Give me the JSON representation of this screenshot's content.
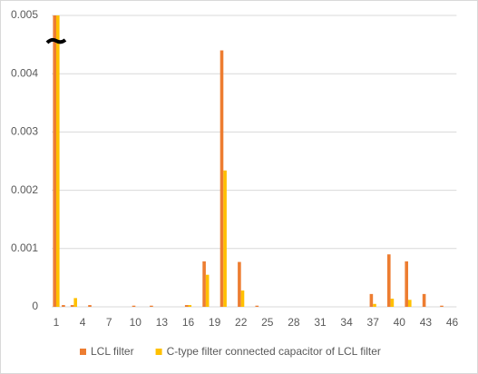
{
  "chart_data": {
    "type": "bar",
    "categories": [
      1,
      null,
      null,
      4,
      null,
      null,
      7,
      null,
      null,
      10,
      null,
      null,
      13,
      null,
      null,
      16,
      null,
      null,
      19,
      null,
      null,
      22,
      null,
      null,
      25,
      null,
      null,
      28,
      null,
      null,
      31,
      null,
      null,
      34,
      null,
      null,
      37,
      null,
      null,
      40,
      null,
      null,
      43,
      null,
      null,
      46
    ],
    "series": [
      {
        "name": "LCL filter",
        "color": "#ed7d31",
        "values": [
          0.005,
          3e-05,
          3e-05,
          0,
          3e-05,
          0,
          0,
          0,
          0,
          2e-05,
          0,
          2e-05,
          0,
          0,
          0,
          3e-05,
          0,
          0.00078,
          0,
          0.0044,
          0,
          0.00077,
          0,
          2e-05,
          0,
          0,
          0,
          0,
          0,
          0,
          0,
          0,
          0,
          0,
          0,
          0,
          0.00022,
          0,
          0.0009,
          0,
          0.00078,
          0,
          0.00022,
          0,
          2e-05,
          0
        ]
      },
      {
        "name": "C-type filter connected capacitor of LCL filter",
        "color": "#ffc000",
        "values": [
          0.005,
          0,
          0.00015,
          0,
          0,
          0,
          0,
          0,
          0,
          0,
          0,
          0,
          0,
          0,
          0,
          3e-05,
          0,
          0.00055,
          0,
          0.00234,
          0,
          0.00028,
          0,
          0,
          0,
          0,
          0,
          0,
          0,
          0,
          0,
          0,
          0,
          0,
          0,
          0,
          5e-05,
          0,
          0.00014,
          0,
          0.00012,
          0,
          0,
          0,
          0,
          0
        ]
      }
    ],
    "ylim": [
      0,
      0.005
    ],
    "yticks": [
      0,
      0.001,
      0.002,
      0.003,
      0.004,
      0.005
    ],
    "grid": true,
    "legend": "bottom"
  }
}
